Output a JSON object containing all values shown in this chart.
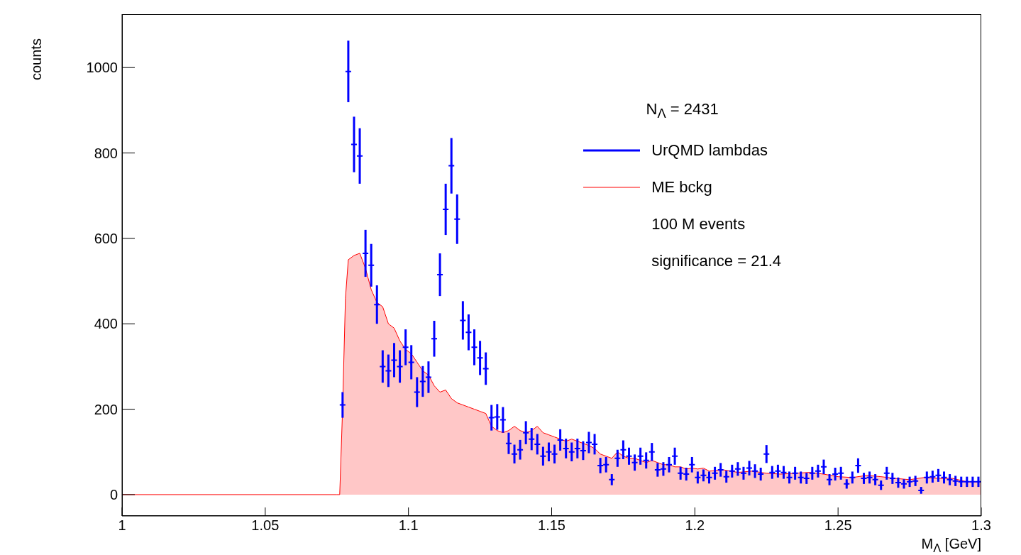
{
  "chart_data": {
    "type": "scatter",
    "xlabel": "M$_{Λ}$ [GeV]",
    "ylabel": "counts",
    "xlim": [
      1,
      1.3
    ],
    "xticks": [
      1,
      1.05,
      1.1,
      1.15,
      1.2,
      1.25,
      1.3
    ],
    "ylim": [
      -50,
      1125
    ],
    "yticks": [
      0,
      200,
      400,
      600,
      800,
      1000
    ],
    "grid": false,
    "legend": "top right",
    "annotations": [
      "N$_{Λ}$ = 2431",
      "100 M events",
      "significance = 21.4"
    ],
    "series": [
      {
        "name": "ME bckg",
        "type": "area",
        "color": "#ff0000",
        "x": [
          1,
          1.075,
          1.076,
          1.077,
          1.078,
          1.079,
          1.081,
          1.083,
          1.085,
          1.087,
          1.089,
          1.091,
          1.093,
          1.095,
          1.097,
          1.099,
          1.101,
          1.103,
          1.105,
          1.107,
          1.109,
          1.111,
          1.113,
          1.115,
          1.117,
          1.119,
          1.121,
          1.123,
          1.125,
          1.127,
          1.129,
          1.131,
          1.133,
          1.135,
          1.137,
          1.139,
          1.141,
          1.143,
          1.145,
          1.147,
          1.149,
          1.151,
          1.153,
          1.155,
          1.157,
          1.159,
          1.161,
          1.163,
          1.165,
          1.167,
          1.169,
          1.171,
          1.173,
          1.175,
          1.177,
          1.179,
          1.181,
          1.183,
          1.185,
          1.187,
          1.189,
          1.191,
          1.193,
          1.195,
          1.197,
          1.199,
          1.201,
          1.203,
          1.205,
          1.21,
          1.215,
          1.22,
          1.225,
          1.23,
          1.235,
          1.24,
          1.245,
          1.25,
          1.255,
          1.26,
          1.265,
          1.27,
          1.275,
          1.28,
          1.285,
          1.29,
          1.295,
          1.3
        ],
        "values": [
          0,
          0,
          0,
          200,
          460,
          550,
          560,
          565,
          530,
          480,
          450,
          440,
          400,
          390,
          360,
          340,
          330,
          310,
          290,
          280,
          255,
          240,
          245,
          225,
          215,
          210,
          205,
          200,
          195,
          190,
          160,
          150,
          145,
          150,
          160,
          150,
          145,
          150,
          160,
          145,
          140,
          135,
          130,
          125,
          130,
          125,
          120,
          115,
          108,
          95,
          90,
          85,
          100,
          90,
          85,
          85,
          80,
          75,
          80,
          75,
          70,
          70,
          65,
          65,
          60,
          62,
          60,
          62,
          55,
          58,
          52,
          55,
          50,
          48,
          50,
          52,
          48,
          42,
          40,
          45,
          42,
          38,
          35,
          40,
          38,
          38,
          30,
          30
        ]
      },
      {
        "name": "UrQMD lambdas",
        "marker": "cross",
        "color": "#0000ff",
        "x": [
          1.077,
          1.079,
          1.081,
          1.083,
          1.085,
          1.087,
          1.089,
          1.091,
          1.093,
          1.095,
          1.097,
          1.099,
          1.101,
          1.103,
          1.105,
          1.107,
          1.109,
          1.111,
          1.113,
          1.115,
          1.117,
          1.119,
          1.121,
          1.123,
          1.125,
          1.127,
          1.129,
          1.131,
          1.133,
          1.135,
          1.137,
          1.139,
          1.141,
          1.143,
          1.145,
          1.147,
          1.149,
          1.151,
          1.153,
          1.155,
          1.157,
          1.159,
          1.161,
          1.163,
          1.165,
          1.167,
          1.169,
          1.171,
          1.173,
          1.175,
          1.177,
          1.179,
          1.181,
          1.183,
          1.185,
          1.187,
          1.189,
          1.191,
          1.193,
          1.195,
          1.197,
          1.199,
          1.201,
          1.203,
          1.205,
          1.207,
          1.209,
          1.211,
          1.213,
          1.215,
          1.217,
          1.219,
          1.221,
          1.223,
          1.225,
          1.227,
          1.229,
          1.231,
          1.233,
          1.235,
          1.237,
          1.239,
          1.241,
          1.243,
          1.245,
          1.247,
          1.249,
          1.251,
          1.253,
          1.255,
          1.257,
          1.259,
          1.261,
          1.263,
          1.265,
          1.267,
          1.269,
          1.271,
          1.273,
          1.275,
          1.277,
          1.279,
          1.281,
          1.283,
          1.285,
          1.287,
          1.289,
          1.291,
          1.293,
          1.295,
          1.297,
          1.299
        ],
        "values": [
          210,
          991,
          820,
          793,
          565,
          537,
          445,
          300,
          290,
          315,
          300,
          345,
          310,
          240,
          265,
          275,
          365,
          515,
          668,
          770,
          645,
          408,
          380,
          345,
          320,
          295,
          180,
          182,
          175,
          120,
          95,
          105,
          145,
          130,
          118,
          90,
          100,
          95,
          128,
          108,
          100,
          108,
          103,
          122,
          118,
          68,
          70,
          35,
          85,
          105,
          90,
          75,
          90,
          80,
          100,
          58,
          60,
          70,
          90,
          50,
          48,
          70,
          40,
          45,
          40,
          50,
          58,
          42,
          55,
          60,
          50,
          62,
          55,
          48,
          95,
          52,
          55,
          52,
          40,
          50,
          40,
          38,
          50,
          55,
          65,
          35,
          48,
          50,
          25,
          40,
          68,
          38,
          40,
          35,
          22,
          50,
          38,
          28,
          25,
          30,
          32,
          10,
          40,
          42,
          45,
          40,
          35,
          32,
          30,
          30,
          30,
          30
        ],
        "errors": [
          30,
          72,
          65,
          65,
          55,
          50,
          45,
          38,
          38,
          40,
          38,
          42,
          40,
          35,
          36,
          37,
          42,
          50,
          60,
          65,
          58,
          45,
          42,
          42,
          40,
          38,
          30,
          30,
          30,
          25,
          22,
          23,
          27,
          26,
          24,
          22,
          22,
          22,
          25,
          23,
          22,
          23,
          22,
          25,
          24,
          18,
          18,
          13,
          20,
          22,
          20,
          19,
          20,
          19,
          21,
          16,
          16,
          18,
          20,
          15,
          15,
          18,
          14,
          14,
          14,
          15,
          16,
          14,
          15,
          16,
          15,
          17,
          16,
          15,
          21,
          15,
          15,
          15,
          14,
          15,
          14,
          13,
          15,
          15,
          17,
          13,
          15,
          15,
          11,
          14,
          17,
          13,
          14,
          13,
          11,
          15,
          13,
          12,
          11,
          12,
          12,
          8,
          14,
          14,
          15,
          14,
          13,
          12,
          12,
          12,
          12,
          12
        ]
      }
    ]
  }
}
